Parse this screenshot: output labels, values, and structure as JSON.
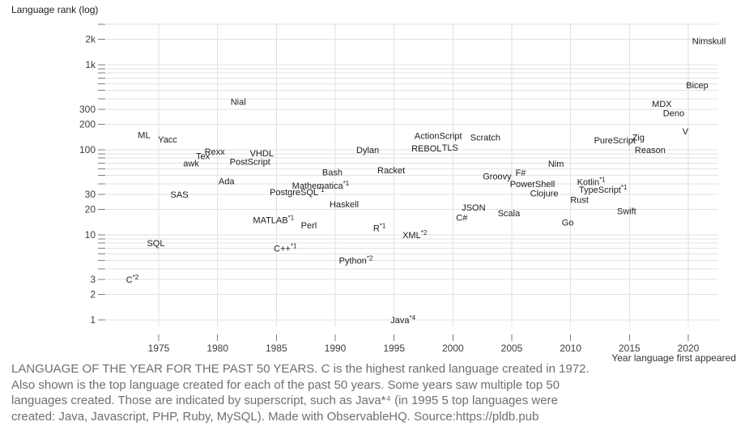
{
  "title": "Language rank (log)",
  "x_axis": {
    "label": "Year language first appeared",
    "ticks": [
      1975,
      1980,
      1985,
      1990,
      1995,
      2000,
      2005,
      2010,
      2015,
      2020
    ]
  },
  "y_axis": {
    "ticks": [
      {
        "value": 2000,
        "label": "2k"
      },
      {
        "value": 1000,
        "label": "1k"
      },
      {
        "value": 300,
        "label": "300"
      },
      {
        "value": 200,
        "label": "200"
      },
      {
        "value": 100,
        "label": "100"
      },
      {
        "value": 30,
        "label": "30"
      },
      {
        "value": 20,
        "label": "20"
      },
      {
        "value": 10,
        "label": "10"
      },
      {
        "value": 3,
        "label": "3"
      },
      {
        "value": 2,
        "label": "2"
      },
      {
        "value": 1,
        "label": "1"
      }
    ],
    "gridline_values": [
      1,
      2,
      3,
      4,
      5,
      6,
      7,
      8,
      9,
      10,
      20,
      30,
      40,
      50,
      60,
      70,
      80,
      90,
      100,
      200,
      300,
      400,
      500,
      600,
      700,
      800,
      900,
      1000,
      2000,
      3000
    ]
  },
  "chart_data": {
    "type": "scatter",
    "title": "Language rank (log)",
    "xlabel": "Year language first appeared",
    "ylabel": "Language rank (log)",
    "x_domain": [
      1972,
      2021
    ],
    "y_domain": [
      1,
      3000
    ],
    "y_scale": "log",
    "grid": true,
    "points": [
      {
        "name": "C",
        "sup": "*2",
        "year": 1972,
        "rank": 3
      },
      {
        "name": "ML",
        "sup": "",
        "year": 1973,
        "rank": 150
      },
      {
        "name": "SQL",
        "sup": "",
        "year": 1974,
        "rank": 8
      },
      {
        "name": "Yacc",
        "sup": "",
        "year": 1975,
        "rank": 133
      },
      {
        "name": "SAS",
        "sup": "",
        "year": 1976,
        "rank": 30
      },
      {
        "name": "awk",
        "sup": "",
        "year": 1977,
        "rank": 70
      },
      {
        "name": "Tex",
        "sup": "",
        "year": 1978,
        "rank": 85
      },
      {
        "name": "Rexx",
        "sup": "",
        "year": 1979,
        "rank": 96
      },
      {
        "name": "Ada",
        "sup": "",
        "year": 1980,
        "rank": 43
      },
      {
        "name": "Nial",
        "sup": "",
        "year": 1981,
        "rank": 370
      },
      {
        "name": "PostScript",
        "sup": "",
        "year": 1982,
        "rank": 73
      },
      {
        "name": "VHDL",
        "sup": "",
        "year": 1983,
        "rank": 92
      },
      {
        "name": "MATLAB",
        "sup": "*1",
        "year": 1984,
        "rank": 15
      },
      {
        "name": "C++",
        "sup": "*1",
        "year": 1985,
        "rank": 7
      },
      {
        "name": "PostgreSQL",
        "sup": "*1",
        "year": 1986,
        "rank": 32
      },
      {
        "name": "Perl",
        "sup": "",
        "year": 1987,
        "rank": 13
      },
      {
        "name": "Mathematica",
        "sup": "*1",
        "year": 1988,
        "rank": 38
      },
      {
        "name": "Bash",
        "sup": "",
        "year": 1989,
        "rank": 55
      },
      {
        "name": "Haskell",
        "sup": "",
        "year": 1990,
        "rank": 23
      },
      {
        "name": "Python",
        "sup": "*2",
        "year": 1991,
        "rank": 5
      },
      {
        "name": "Dylan",
        "sup": "",
        "year": 1992,
        "rank": 100
      },
      {
        "name": "R",
        "sup": "*1",
        "year": 1993,
        "rank": 12
      },
      {
        "name": "Racket",
        "sup": "",
        "year": 1994,
        "rank": 58
      },
      {
        "name": "Java",
        "sup": "*4",
        "year": 1995,
        "rank": 1
      },
      {
        "name": "XML",
        "sup": "*2",
        "year": 1996,
        "rank": 10
      },
      {
        "name": "REBOL",
        "sup": "",
        "year": 1997,
        "rank": 105
      },
      {
        "name": "ActionScript",
        "sup": "",
        "year": 1998,
        "rank": 147
      },
      {
        "name": "TLS",
        "sup": "",
        "year": 1999,
        "rank": 107
      },
      {
        "name": "C#",
        "sup": "",
        "year": 2000,
        "rank": 16
      },
      {
        "name": "JSON",
        "sup": "",
        "year": 2001,
        "rank": 21
      },
      {
        "name": "Scratch",
        "sup": "",
        "year": 2002,
        "rank": 140
      },
      {
        "name": "Groovy",
        "sup": "",
        "year": 2003,
        "rank": 49
      },
      {
        "name": "Scala",
        "sup": "",
        "year": 2004,
        "rank": 18
      },
      {
        "name": "F#",
        "sup": "",
        "year": 2005,
        "rank": 54
      },
      {
        "name": "PowerShell",
        "sup": "",
        "year": 2006,
        "rank": 40
      },
      {
        "name": "Clojure",
        "sup": "",
        "year": 2007,
        "rank": 31
      },
      {
        "name": "Nim",
        "sup": "",
        "year": 2008,
        "rank": 69
      },
      {
        "name": "Go",
        "sup": "",
        "year": 2009,
        "rank": 14
      },
      {
        "name": "Rust",
        "sup": "",
        "year": 2010,
        "rank": 26
      },
      {
        "name": "Kotlin",
        "sup": "*1",
        "year": 2011,
        "rank": 42
      },
      {
        "name": "TypeScript",
        "sup": "*1",
        "year": 2012,
        "rank": 34
      },
      {
        "name": "PureScript",
        "sup": "",
        "year": 2013,
        "rank": 130
      },
      {
        "name": "Swift",
        "sup": "",
        "year": 2014,
        "rank": 19
      },
      {
        "name": "Zig",
        "sup": "",
        "year": 2015,
        "rank": 140
      },
      {
        "name": "Reason",
        "sup": "",
        "year": 2016,
        "rank": 100
      },
      {
        "name": "MDX",
        "sup": "",
        "year": 2017,
        "rank": 350
      },
      {
        "name": "Deno",
        "sup": "",
        "year": 2018,
        "rank": 270
      },
      {
        "name": "V",
        "sup": "",
        "year": 2019,
        "rank": 165
      },
      {
        "name": "Bicep",
        "sup": "",
        "year": 2020,
        "rank": 580
      },
      {
        "name": "Nimskull",
        "sup": "",
        "year": 2021,
        "rank": 1900
      }
    ]
  },
  "caption": {
    "lines": [
      "LANGUAGE OF THE YEAR FOR THE PAST 50 YEARS. C is the highest ranked language created in 1972.",
      "Also shown is the top language created for each of the past 50 years. Some years saw multiple top 50",
      "languages created. Those are indicated by superscript, such as Java*⁴ (in 1995 5 top languages were",
      "created: Java, Javascript, PHP, Ruby, MySQL). Made with ObservableHQ. Source:https://pldb.pub"
    ]
  },
  "colors": {
    "label_text": "#1c1c1c",
    "tick_text": "#3c3c3c",
    "tick_mark": "#7d7d7d",
    "gridline": "#e2e2e2",
    "caption_text": "#6f6f6f"
  }
}
